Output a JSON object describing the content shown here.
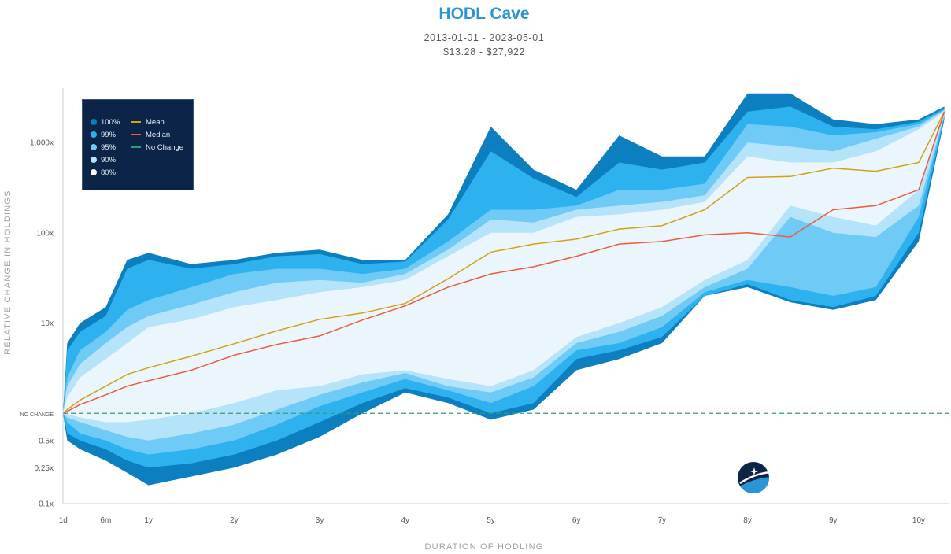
{
  "header": {
    "title": "HODL Cave",
    "date_range": "2013-01-01  -  2023-05-01",
    "price_range": "$13.28  -  $27,922"
  },
  "colors": {
    "band_100": "#0b7fbf",
    "band_99": "#2eb1ef",
    "band_95": "#6fcaf6",
    "band_90": "#b4e3fa",
    "band_80": "#eaf6fc",
    "mean": "#d4a017",
    "median": "#ef5a3c",
    "no_change": "#2f9e76",
    "legend_bg": "#0b2447"
  },
  "legend": {
    "bands": [
      "100%",
      "99%",
      "95%",
      "90%",
      "80%"
    ],
    "lines": [
      "Mean",
      "Median",
      "No Change"
    ]
  },
  "logo": {
    "icon": "moon-star-icon"
  },
  "chart_data": {
    "type": "area",
    "title": "HODL Cave",
    "xlabel": "DURATION OF HODLING",
    "ylabel": "RELATIVE CHANGE IN HOLDINGS",
    "y_scale": "log",
    "ylim": [
      0.1,
      4000
    ],
    "xlim": [
      0,
      10.35
    ],
    "x_unit": "years",
    "x_ticks": [
      {
        "value": 0.003,
        "label": "1d"
      },
      {
        "value": 0.5,
        "label": "6m"
      },
      {
        "value": 1,
        "label": "1y"
      },
      {
        "value": 2,
        "label": "2y"
      },
      {
        "value": 3,
        "label": "3y"
      },
      {
        "value": 4,
        "label": "4y"
      },
      {
        "value": 5,
        "label": "5y"
      },
      {
        "value": 6,
        "label": "6y"
      },
      {
        "value": 7,
        "label": "7y"
      },
      {
        "value": 8,
        "label": "8y"
      },
      {
        "value": 9,
        "label": "9y"
      },
      {
        "value": 10,
        "label": "10y"
      }
    ],
    "y_ticks": [
      {
        "value": 1000,
        "label": "1,000x"
      },
      {
        "value": 100,
        "label": "100x"
      },
      {
        "value": 10,
        "label": "10x"
      },
      {
        "value": 1,
        "label": "NO CHANGE"
      },
      {
        "value": 0.5,
        "label": "0.5x"
      },
      {
        "value": 0.25,
        "label": "0.25x"
      },
      {
        "value": 0.1,
        "label": "0.1x"
      }
    ],
    "x": [
      0,
      0.05,
      0.2,
      0.5,
      0.75,
      1.0,
      1.5,
      2.0,
      2.5,
      3.0,
      3.5,
      4.0,
      4.5,
      5.0,
      5.5,
      6.0,
      6.5,
      7.0,
      7.5,
      8.0,
      8.5,
      9.0,
      9.5,
      10.0,
      10.3
    ],
    "series": [
      {
        "name": "100% upper",
        "values": [
          1.0,
          6,
          10,
          15,
          50,
          60,
          45,
          50,
          60,
          65,
          50,
          50,
          160,
          1500,
          500,
          300,
          1200,
          700,
          700,
          3500,
          3500,
          1800,
          1600,
          1800,
          2500
        ]
      },
      {
        "name": "99% upper",
        "values": [
          1.0,
          5,
          8,
          12,
          40,
          50,
          40,
          45,
          55,
          58,
          45,
          48,
          140,
          800,
          400,
          250,
          600,
          500,
          600,
          2200,
          2500,
          1500,
          1400,
          1700,
          2400
        ]
      },
      {
        "name": "95% upper",
        "values": [
          1.0,
          2.5,
          5,
          8,
          14,
          18,
          25,
          35,
          40,
          40,
          35,
          40,
          80,
          180,
          180,
          200,
          300,
          300,
          350,
          1600,
          1500,
          1200,
          1300,
          1600,
          2300
        ]
      },
      {
        "name": "90% upper",
        "values": [
          1.0,
          2.0,
          3.5,
          6,
          9,
          12,
          16,
          22,
          28,
          30,
          28,
          35,
          65,
          140,
          130,
          180,
          200,
          220,
          260,
          1000,
          900,
          800,
          1100,
          1500,
          2300
        ]
      },
      {
        "name": "80% upper",
        "values": [
          1.0,
          1.5,
          2.5,
          4,
          6,
          9,
          11,
          15,
          18,
          22,
          25,
          30,
          55,
          100,
          100,
          150,
          160,
          180,
          220,
          700,
          600,
          600,
          800,
          1400,
          2200
        ]
      },
      {
        "name": "Mean",
        "values": [
          1.0,
          1.1,
          1.4,
          2.0,
          2.7,
          3.2,
          4.3,
          5.9,
          8.2,
          11.0,
          12.9,
          16.5,
          31,
          61,
          75,
          85,
          110,
          120,
          180,
          410,
          420,
          520,
          480,
          600,
          2200
        ]
      },
      {
        "name": "Median",
        "values": [
          1.0,
          1.05,
          1.25,
          1.6,
          2.0,
          2.3,
          3.0,
          4.4,
          5.8,
          7.2,
          10.8,
          15.5,
          25,
          35,
          42,
          55,
          75,
          80,
          95,
          100,
          90,
          180,
          200,
          300,
          2200
        ]
      },
      {
        "name": "80% lower",
        "values": [
          1.0,
          0.98,
          0.9,
          0.8,
          0.8,
          0.85,
          1.0,
          1.3,
          1.8,
          2.0,
          2.7,
          3.0,
          2.4,
          2.0,
          3.0,
          7.0,
          10,
          15,
          30,
          50,
          200,
          150,
          120,
          300,
          2100
        ]
      },
      {
        "name": "90% lower",
        "values": [
          1.0,
          0.9,
          0.8,
          0.65,
          0.55,
          0.5,
          0.6,
          0.75,
          1.1,
          1.6,
          2.2,
          2.8,
          2.0,
          1.7,
          2.5,
          6.0,
          8,
          12,
          25,
          40,
          150,
          100,
          90,
          200,
          2000
        ]
      },
      {
        "name": "95% lower",
        "values": [
          1.0,
          0.8,
          0.6,
          0.5,
          0.4,
          0.35,
          0.4,
          0.5,
          0.75,
          1.2,
          1.7,
          2.4,
          1.8,
          1.3,
          2.0,
          5.0,
          6,
          9,
          22,
          30,
          25,
          20,
          25,
          150,
          2000
        ]
      },
      {
        "name": "99% lower",
        "values": [
          1.0,
          0.6,
          0.5,
          0.4,
          0.3,
          0.25,
          0.28,
          0.35,
          0.5,
          0.8,
          1.3,
          1.9,
          1.5,
          1.0,
          1.3,
          4.0,
          5,
          7,
          20,
          27,
          18,
          15,
          20,
          100,
          1900
        ]
      },
      {
        "name": "100% lower",
        "values": [
          1.0,
          0.5,
          0.4,
          0.3,
          0.22,
          0.16,
          0.2,
          0.25,
          0.35,
          0.55,
          1.0,
          1.7,
          1.3,
          0.85,
          1.1,
          3.0,
          4,
          6,
          20,
          25,
          17,
          14,
          18,
          80,
          1800
        ]
      }
    ]
  },
  "labels": {
    "x_axis_title": "DURATION OF HODLING",
    "y_axis_title": "RELATIVE CHANGE IN HOLDINGS"
  }
}
